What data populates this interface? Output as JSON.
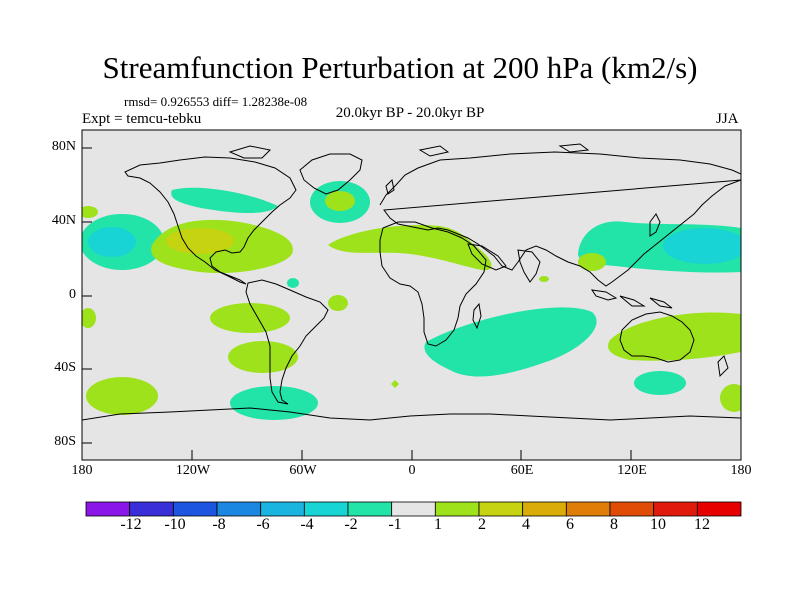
{
  "title": "Streamfunction Perturbation at 200 hPa (km2/s)",
  "stats": {
    "rmsd_label": "rmsd=",
    "rmsd": "0.926553",
    "diff_label": "diff=",
    "diff": "1.28238e-08"
  },
  "experiment": "Expt = temcu-tebku",
  "period": "20.0kyr BP - 20.0kyr BP",
  "season": "JJA",
  "map": {
    "projection": "cylindrical equidistant",
    "lat_ticks": [
      "80N",
      "40N",
      "0",
      "40S",
      "80S"
    ],
    "lon_ticks": [
      "180",
      "120W",
      "60W",
      "0",
      "60E",
      "120E",
      "180"
    ],
    "background_color": "#e5e5e5",
    "coast_color": "#000000"
  },
  "colorbar": {
    "labels": [
      "-12",
      "-10",
      "-8",
      "-6",
      "-4",
      "-2",
      "-1",
      "1",
      "2",
      "4",
      "6",
      "8",
      "10",
      "12"
    ],
    "colors": [
      "#8a17e8",
      "#3a2ed8",
      "#1d55e0",
      "#1b87e0",
      "#19b4e0",
      "#19d4d4",
      "#22e3a8",
      "#e6e6e6",
      "#9ee21c",
      "#c5d310",
      "#d9ac0a",
      "#de7e08",
      "#e04c06",
      "#e01b0b",
      "#e60000"
    ]
  },
  "chart_data": {
    "type": "heatmap",
    "variable": "Streamfunction Perturbation at 200 hPa",
    "units": "km2/s",
    "levels": [
      -12,
      -10,
      -8,
      -6,
      -4,
      -2,
      -1,
      1,
      2,
      4,
      6,
      8,
      10,
      12
    ],
    "lon_range": [
      -180,
      180
    ],
    "lat_range": [
      -90,
      90
    ],
    "features": [
      {
        "label": "North Pacific low",
        "lon": -157,
        "lat": 33,
        "value": -5
      },
      {
        "label": "West Pacific low",
        "lon": 158,
        "lat": 32,
        "value": -5
      },
      {
        "label": "North America high",
        "lon": -108,
        "lat": 33,
        "value": 4
      },
      {
        "label": "North Atlantic high",
        "lon": -40,
        "lat": 56,
        "value": 3
      },
      {
        "label": "Europe-Africa high",
        "lon": 8,
        "lat": 28,
        "value": 2
      },
      {
        "label": "Southern ocean band",
        "lon": 55,
        "lat": -35,
        "value": -2
      }
    ]
  }
}
